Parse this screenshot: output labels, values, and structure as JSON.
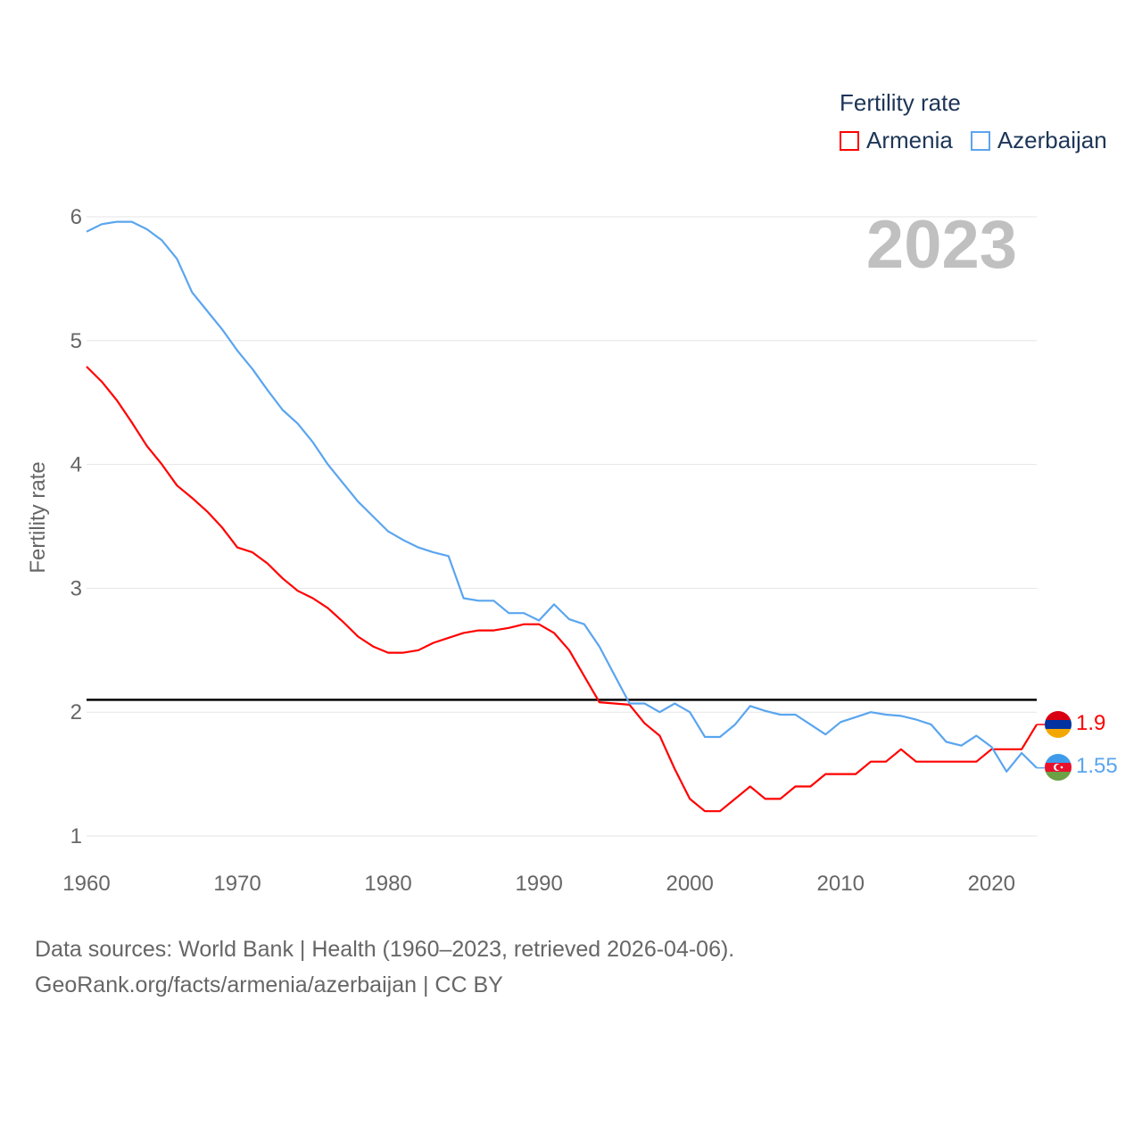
{
  "legend": {
    "title": "Fertility rate",
    "items": [
      {
        "label": "Armenia",
        "color": "#ff0000"
      },
      {
        "label": "Azerbaijan",
        "color": "#5aa5ef"
      }
    ]
  },
  "footer": {
    "line1": "Data sources: World Bank | Health (1960–2023, retrieved 2026-04-06).",
    "line2": "GeoRank.org/facts/armenia/azerbaijan | CC BY"
  },
  "chart_data": {
    "type": "line",
    "title": "Fertility rate",
    "year_label": "2023",
    "xlabel": "",
    "ylabel": "Fertility rate",
    "xlim": [
      1960,
      2023
    ],
    "ylim": [
      1,
      6
    ],
    "x_ticks": [
      1960,
      1970,
      1980,
      1990,
      2000,
      2010,
      2020
    ],
    "y_ticks": [
      1,
      2,
      3,
      4,
      5,
      6
    ],
    "grid": true,
    "legend_position": "top-right",
    "reference_line": 2.1,
    "x_start": 1960,
    "series": [
      {
        "name": "Armenia",
        "color": "#ff0000",
        "end_label": "1.9",
        "values": [
          4.79,
          4.67,
          4.52,
          4.34,
          4.15,
          4.0,
          3.83,
          3.73,
          3.62,
          3.49,
          3.33,
          3.29,
          3.2,
          3.08,
          2.98,
          2.92,
          2.84,
          2.73,
          2.61,
          2.53,
          2.48,
          2.48,
          2.5,
          2.56,
          2.6,
          2.64,
          2.66,
          2.66,
          2.68,
          2.71,
          2.71,
          2.64,
          2.5,
          2.29,
          2.08,
          2.07,
          2.06,
          1.91,
          1.81,
          1.54,
          1.3,
          1.2,
          1.2,
          1.3,
          1.4,
          1.3,
          1.3,
          1.4,
          1.4,
          1.5,
          1.5,
          1.5,
          1.6,
          1.6,
          1.7,
          1.6,
          1.6,
          1.6,
          1.6,
          1.6,
          1.7,
          1.7,
          1.7,
          1.9
        ]
      },
      {
        "name": "Azerbaijan",
        "color": "#5aa5ef",
        "end_label": "1.55",
        "values": [
          5.88,
          5.94,
          5.96,
          5.96,
          5.9,
          5.81,
          5.66,
          5.39,
          5.24,
          5.09,
          4.92,
          4.77,
          4.6,
          4.44,
          4.33,
          4.18,
          4.0,
          3.85,
          3.7,
          3.58,
          3.46,
          3.39,
          3.33,
          3.29,
          3.26,
          2.92,
          2.9,
          2.9,
          2.8,
          2.8,
          2.74,
          2.87,
          2.75,
          2.71,
          2.53,
          2.3,
          2.07,
          2.07,
          2.0,
          2.07,
          2.0,
          1.8,
          1.8,
          1.9,
          2.05,
          2.01,
          1.98,
          1.98,
          1.9,
          1.82,
          1.92,
          1.96,
          2.0,
          1.98,
          1.97,
          1.94,
          1.9,
          1.76,
          1.73,
          1.81,
          1.72,
          1.52,
          1.67,
          1.55
        ]
      }
    ]
  }
}
